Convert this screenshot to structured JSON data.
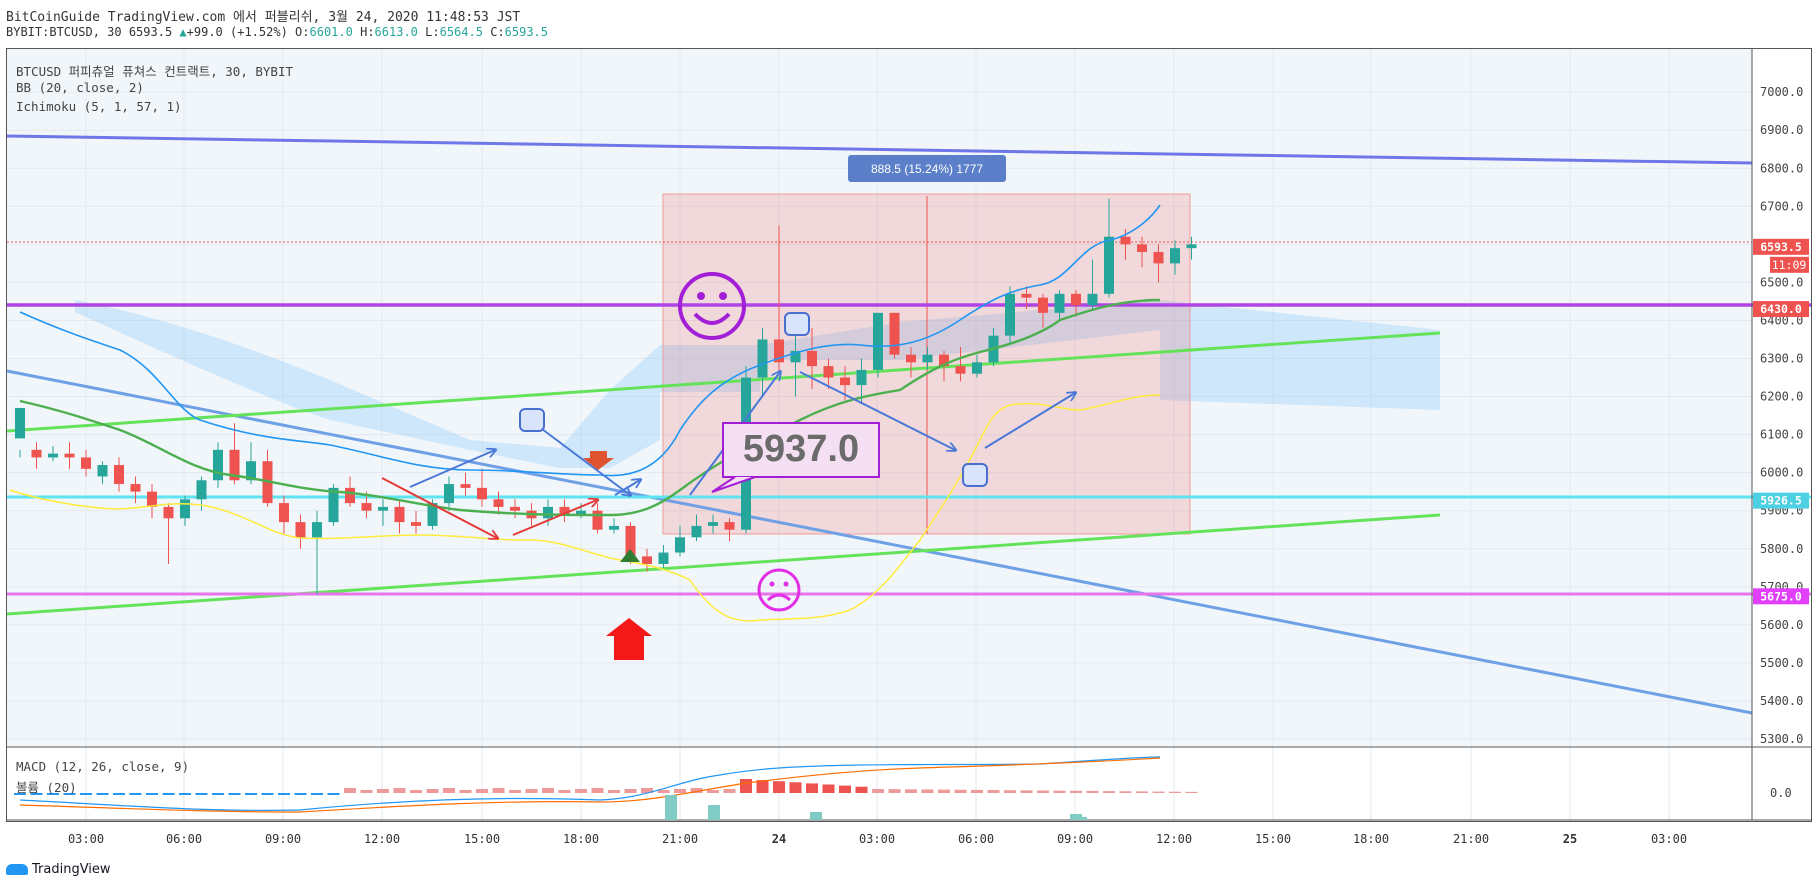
{
  "header": {
    "line1": "BitCoinGuide TradingView.com 에서 퍼블리쉬, 3월 24, 2020 11:48:53 JST",
    "symbol": "BYBIT:BTCUSD, 30",
    "last": "6593.5",
    "arrow": "▲",
    "change": "+99.0 (+1.52%)",
    "o_label": "O:",
    "o": "6601.0",
    "h_label": "H:",
    "h": "6613.0",
    "l_label": "L:",
    "l": "6564.5",
    "c_label": "C:",
    "c": "6593.5"
  },
  "legend": {
    "title": "BTCUSD 퍼피츄얼 퓨쳐스 컨트랙트, 30, BYBIT",
    "bb": "BB (20, close, 2)",
    "ichimoku": "Ichimoku (5, 1, 57, 1)",
    "macd": "MACD (12, 26, close, 9)",
    "vol": "볼륨 (20)"
  },
  "footer": {
    "brand": "TradingView"
  },
  "chart_data": {
    "type": "candlestick",
    "y_range": [
      5260,
      7040
    ],
    "y_ticks": [
      "7000.0",
      "6900.0",
      "6800.0",
      "6700.0",
      "6600.0",
      "6500.0",
      "6400.0",
      "6300.0",
      "6200.0",
      "6100.0",
      "6000.0",
      "5900.0",
      "5800.0",
      "5700.0",
      "5600.0",
      "5500.0",
      "5400.0",
      "5300.0"
    ],
    "macd_ticks": [
      "0.0"
    ],
    "x_ticks": [
      "03:00",
      "06:00",
      "09:00",
      "12:00",
      "15:00",
      "18:00",
      "21:00",
      "24",
      "03:00",
      "06:00",
      "09:00",
      "12:00",
      "15:00",
      "18:00",
      "21:00",
      "25",
      "03:00"
    ],
    "price_labels": [
      {
        "value": 6593.5,
        "text": "6593.5",
        "color": "#ef5350"
      },
      {
        "value": 6430.0,
        "text": "6430.0",
        "color": "#ef5350"
      },
      {
        "value": 5926.5,
        "text": "5926.5",
        "color": "#4dd0e1"
      },
      {
        "value": 5675.0,
        "text": "5675.0",
        "color": "#e040fb"
      }
    ],
    "countdown": "11:09",
    "measure_label": "888.5 (15.24%) 1777",
    "annotation": "5937.0",
    "colors": {
      "up": "#26a69a",
      "down": "#ef5350",
      "bb": "#2196f3",
      "ichimoku_base": "#4caf50",
      "lagging": "#ffeb3b"
    },
    "candles": [
      [
        6090,
        6170,
        6060,
        6040
      ],
      [
        6060,
        6040,
        6080,
        6010
      ],
      [
        6040,
        6050,
        6070,
        6030
      ],
      [
        6050,
        6040,
        6080,
        6010
      ],
      [
        6040,
        6010,
        6060,
        5990
      ],
      [
        5990,
        6020,
        6030,
        5970
      ],
      [
        6020,
        5970,
        6040,
        5950
      ],
      [
        5970,
        5950,
        5990,
        5920
      ],
      [
        5950,
        5910,
        5970,
        5880
      ],
      [
        5910,
        5880,
        5920,
        5760
      ],
      [
        5880,
        5930,
        5940,
        5860
      ],
      [
        5930,
        5980,
        5990,
        5900
      ],
      [
        5980,
        6060,
        6080,
        5960
      ],
      [
        6060,
        5980,
        6130,
        5970
      ],
      [
        5980,
        6030,
        6080,
        5970
      ],
      [
        6030,
        5920,
        6060,
        5910
      ],
      [
        5920,
        5870,
        5940,
        5840
      ],
      [
        5870,
        5830,
        5890,
        5800
      ],
      [
        5830,
        5870,
        5900,
        5680
      ],
      [
        5870,
        5960,
        5970,
        5860
      ],
      [
        5960,
        5920,
        5990,
        5910
      ],
      [
        5920,
        5900,
        5950,
        5880
      ],
      [
        5900,
        5910,
        5930,
        5860
      ],
      [
        5910,
        5870,
        5930,
        5840
      ],
      [
        5870,
        5860,
        5900,
        5840
      ],
      [
        5860,
        5920,
        5930,
        5850
      ],
      [
        5920,
        5970,
        5990,
        5900
      ],
      [
        5970,
        5960,
        6000,
        5940
      ],
      [
        5960,
        5930,
        6010,
        5910
      ],
      [
        5930,
        5910,
        5950,
        5890
      ],
      [
        5910,
        5900,
        5930,
        5880
      ],
      [
        5900,
        5880,
        5920,
        5860
      ],
      [
        5880,
        5910,
        5930,
        5860
      ],
      [
        5910,
        5890,
        5930,
        5870
      ],
      [
        5890,
        5900,
        5920,
        5880
      ],
      [
        5900,
        5850,
        5920,
        5840
      ],
      [
        5850,
        5860,
        5880,
        5840
      ],
      [
        5860,
        5780,
        5870,
        5760
      ],
      [
        5780,
        5760,
        5800,
        5740
      ],
      [
        5760,
        5790,
        5810,
        5750
      ],
      [
        5790,
        5830,
        5860,
        5780
      ],
      [
        5830,
        5860,
        5890,
        5820
      ],
      [
        5860,
        5870,
        5890,
        5840
      ],
      [
        5870,
        5850,
        5880,
        5820
      ],
      [
        5850,
        6250,
        6280,
        5840
      ],
      [
        6250,
        6350,
        6380,
        6200
      ],
      [
        6350,
        6290,
        6650,
        6260
      ],
      [
        6290,
        6320,
        6360,
        6200
      ],
      [
        6320,
        6280,
        6380,
        6220
      ],
      [
        6280,
        6250,
        6300,
        6220
      ],
      [
        6250,
        6230,
        6280,
        6190
      ],
      [
        6230,
        6270,
        6300,
        6180
      ],
      [
        6270,
        6420,
        6420,
        6250
      ],
      [
        6420,
        6310,
        6420,
        6300
      ],
      [
        6310,
        6290,
        6330,
        6250
      ],
      [
        6290,
        6310,
        6330,
        6270
      ],
      [
        6310,
        6280,
        6320,
        6240
      ],
      [
        6280,
        6260,
        6330,
        6240
      ],
      [
        6260,
        6290,
        6310,
        6250
      ],
      [
        6290,
        6360,
        6380,
        6280
      ],
      [
        6360,
        6470,
        6490,
        6340
      ],
      [
        6470,
        6460,
        6490,
        6430
      ],
      [
        6460,
        6420,
        6470,
        6380
      ],
      [
        6420,
        6470,
        6480,
        6400
      ],
      [
        6470,
        6440,
        6480,
        6410
      ],
      [
        6440,
        6470,
        6560,
        6430
      ],
      [
        6470,
        6620,
        6720,
        6460
      ],
      [
        6620,
        6600,
        6640,
        6560
      ],
      [
        6600,
        6580,
        6620,
        6540
      ],
      [
        6580,
        6550,
        6600,
        6500
      ],
      [
        6550,
        6590,
        6610,
        6520
      ],
      [
        6590,
        6600,
        6620,
        6560
      ]
    ]
  }
}
